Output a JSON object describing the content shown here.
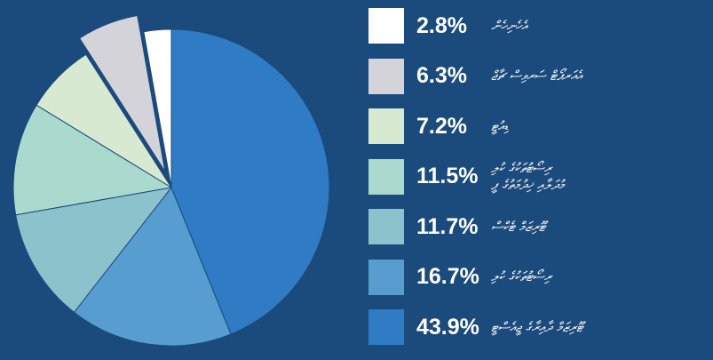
{
  "chart_data": {
    "type": "pie",
    "categories": [
      "އެހެނިހެން",
      "އެއަރޕޯޓް ސަރވިސް ޗާޖް",
      "ޑިއުޓީ",
      "ރިސޯޓުތަކުގެ ކުލި\nމުދަލާއި ޚިދުމަތުގެ ފީ",
      "ޓޫރިޒަމް ޓެކްސް",
      "ރިސޯޓުތަކުގެ ކުލި",
      "ޓޫރިޒަމް ދާއިރާގެ ޖީއެސްޓީ"
    ],
    "values": [
      2.8,
      6.3,
      7.2,
      11.5,
      11.7,
      16.7,
      43.9
    ],
    "value_labels": [
      "2.8%",
      "6.3%",
      "7.2%",
      "11.5%",
      "11.7%",
      "16.7%",
      "43.9%"
    ],
    "colors": [
      "#ffffff",
      "#d3d3d9",
      "#d8e9d2",
      "#a9dacd",
      "#8cc2cc",
      "#589dcf",
      "#2f7cc5"
    ],
    "explode": [
      0,
      0.11,
      0,
      0,
      0,
      0,
      0
    ]
  }
}
